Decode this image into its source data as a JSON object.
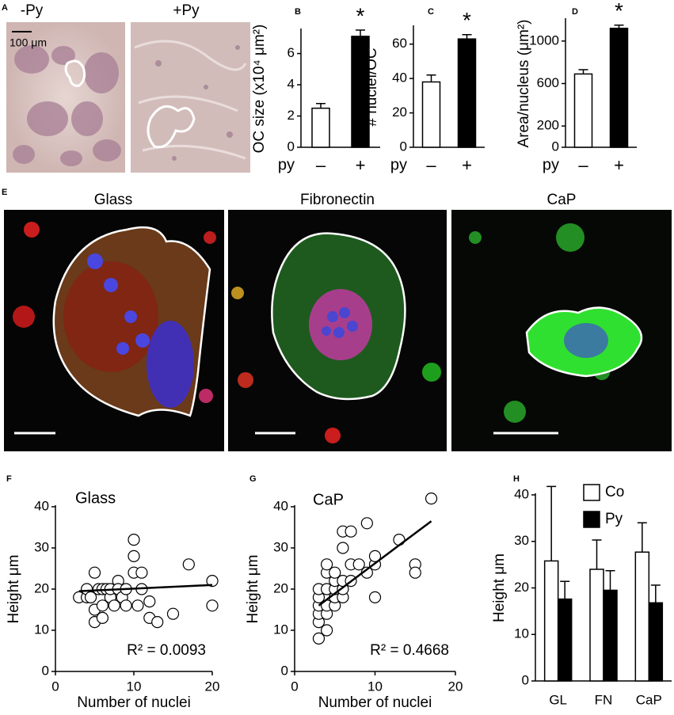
{
  "panels": {
    "A": {
      "label": "A",
      "images": [
        "-Py",
        "+Py"
      ],
      "scale_bar": "100 μm"
    },
    "E": {
      "label": "E",
      "images": [
        "Glass",
        "Fibronectin",
        "CaP"
      ]
    }
  },
  "chart_data": [
    {
      "type": "bar",
      "panel": "B",
      "ylabel": "OC size (x10⁴ μm²)",
      "xlabel": "py",
      "categories": [
        "–",
        "+"
      ],
      "values": [
        2.5,
        7.1
      ],
      "errors": [
        0.3,
        0.4
      ],
      "colors": [
        "#ffffff",
        "#000000"
      ],
      "annotation": "*",
      "ylim": [
        0,
        7.5
      ],
      "yticks": [
        0,
        2,
        4,
        6
      ]
    },
    {
      "type": "bar",
      "panel": "C",
      "ylabel": "# nuclei/OC",
      "xlabel": "py",
      "categories": [
        "–",
        "+"
      ],
      "values": [
        38,
        63
      ],
      "errors": [
        4,
        2.5
      ],
      "colors": [
        "#ffffff",
        "#000000"
      ],
      "annotation": "*",
      "ylim": [
        0,
        70
      ],
      "yticks": [
        0,
        20,
        40,
        60
      ]
    },
    {
      "type": "bar",
      "panel": "D",
      "ylabel": "Area/nucleus (μm²)",
      "xlabel": "py",
      "categories": [
        "–",
        "+"
      ],
      "values": [
        690,
        1120
      ],
      "errors": [
        40,
        30
      ],
      "colors": [
        "#ffffff",
        "#000000"
      ],
      "annotation": "*",
      "ylim": [
        0,
        1200
      ],
      "yticks": [
        0,
        200,
        600,
        1000
      ]
    },
    {
      "type": "scatter",
      "panel": "F",
      "title": "Glass",
      "xlabel": "Number of nuclei",
      "ylabel": "Height μm",
      "annotation": "R² = 0.0093",
      "x": [
        3,
        4,
        4,
        4.5,
        5,
        5,
        5,
        5.5,
        6,
        6,
        6,
        6.5,
        7,
        7,
        7.5,
        8,
        8,
        8.5,
        9,
        9,
        10,
        10,
        10,
        10.5,
        11,
        11,
        12,
        12,
        13,
        15,
        17,
        20,
        20
      ],
      "y": [
        18,
        18,
        20,
        18,
        24,
        12,
        15,
        20,
        16,
        13,
        20,
        20,
        18,
        20,
        16,
        22,
        20,
        18,
        20,
        16,
        32,
        28,
        24,
        16,
        24,
        20,
        17,
        13,
        12,
        14,
        26,
        22,
        16
      ],
      "trendline": {
        "x": [
          3,
          20
        ],
        "y": [
          19.5,
          21
        ]
      },
      "xlim": [
        0,
        20
      ],
      "ylim": [
        0,
        40
      ],
      "xticks": [
        0,
        10,
        20
      ],
      "yticks": [
        0,
        10,
        20,
        30,
        40
      ]
    },
    {
      "type": "scatter",
      "panel": "G",
      "title": "CaP",
      "xlabel": "Number of nuclei",
      "ylabel": "Height μm",
      "annotation": "R² = 0.4668",
      "x": [
        3,
        3,
        3,
        3,
        3,
        3,
        4,
        4,
        4,
        4,
        4,
        4,
        5,
        5,
        5,
        5,
        5,
        6,
        6,
        6,
        6,
        6,
        7,
        7,
        7,
        8,
        9,
        9,
        10,
        10,
        10,
        13,
        15,
        15,
        17
      ],
      "y": [
        8,
        12,
        14,
        16,
        18,
        20,
        10,
        14,
        16,
        20,
        24,
        26,
        16,
        18,
        20,
        22,
        24,
        18,
        20,
        22,
        30,
        34,
        26,
        34,
        22,
        26,
        36,
        24,
        26,
        28,
        18,
        32,
        26,
        24,
        42
      ],
      "trendline": {
        "x": [
          3,
          17
        ],
        "y": [
          16,
          36.5
        ]
      },
      "xlim": [
        0,
        20
      ],
      "ylim": [
        0,
        40
      ],
      "xticks": [
        0,
        10,
        20
      ],
      "yticks": [
        0,
        10,
        20,
        30,
        40
      ]
    },
    {
      "type": "bar",
      "panel": "H",
      "ylabel": "Height μm",
      "categories": [
        "GL",
        "FN",
        "CaP"
      ],
      "series": [
        {
          "name": "Co",
          "color": "#ffffff",
          "values": [
            25.8,
            24,
            27.7
          ],
          "errors": [
            16,
            6.3,
            6.3
          ]
        },
        {
          "name": "Py",
          "color": "#000000",
          "values": [
            17.6,
            19.5,
            16.8
          ],
          "errors": [
            3.8,
            4.2,
            3.8
          ]
        }
      ],
      "ylim": [
        0,
        40
      ],
      "yticks": [
        0,
        10,
        20,
        30,
        40
      ]
    }
  ]
}
